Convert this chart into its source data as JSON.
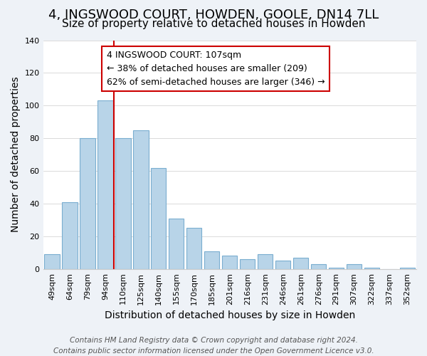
{
  "title": "4, INGSWOOD COURT, HOWDEN, GOOLE, DN14 7LL",
  "subtitle": "Size of property relative to detached houses in Howden",
  "xlabel": "Distribution of detached houses by size in Howden",
  "ylabel": "Number of detached properties",
  "categories": [
    "49sqm",
    "64sqm",
    "79sqm",
    "94sqm",
    "110sqm",
    "125sqm",
    "140sqm",
    "155sqm",
    "170sqm",
    "185sqm",
    "201sqm",
    "216sqm",
    "231sqm",
    "246sqm",
    "261sqm",
    "276sqm",
    "291sqm",
    "307sqm",
    "322sqm",
    "337sqm",
    "352sqm"
  ],
  "values": [
    9,
    41,
    80,
    103,
    80,
    85,
    62,
    31,
    25,
    11,
    8,
    6,
    9,
    5,
    7,
    3,
    1,
    3,
    1,
    0,
    1
  ],
  "bar_color": "#b8d4e8",
  "bar_edge_color": "#7aaed0",
  "vline_x_index": 4,
  "vline_color": "#cc0000",
  "annotation_text": "4 INGSWOOD COURT: 107sqm\n← 38% of detached houses are smaller (209)\n62% of semi-detached houses are larger (346) →",
  "annotation_box_color": "#ffffff",
  "annotation_box_edge_color": "#cc0000",
  "ylim": [
    0,
    140
  ],
  "yticks": [
    0,
    20,
    40,
    60,
    80,
    100,
    120,
    140
  ],
  "footer_line1": "Contains HM Land Registry data © Crown copyright and database right 2024.",
  "footer_line2": "Contains public sector information licensed under the Open Government Licence v3.0.",
  "bg_color": "#eef2f7",
  "plot_bg_color": "#ffffff",
  "title_fontsize": 13,
  "subtitle_fontsize": 11,
  "axis_label_fontsize": 10,
  "tick_fontsize": 8,
  "annotation_fontsize": 9,
  "footer_fontsize": 7.5
}
